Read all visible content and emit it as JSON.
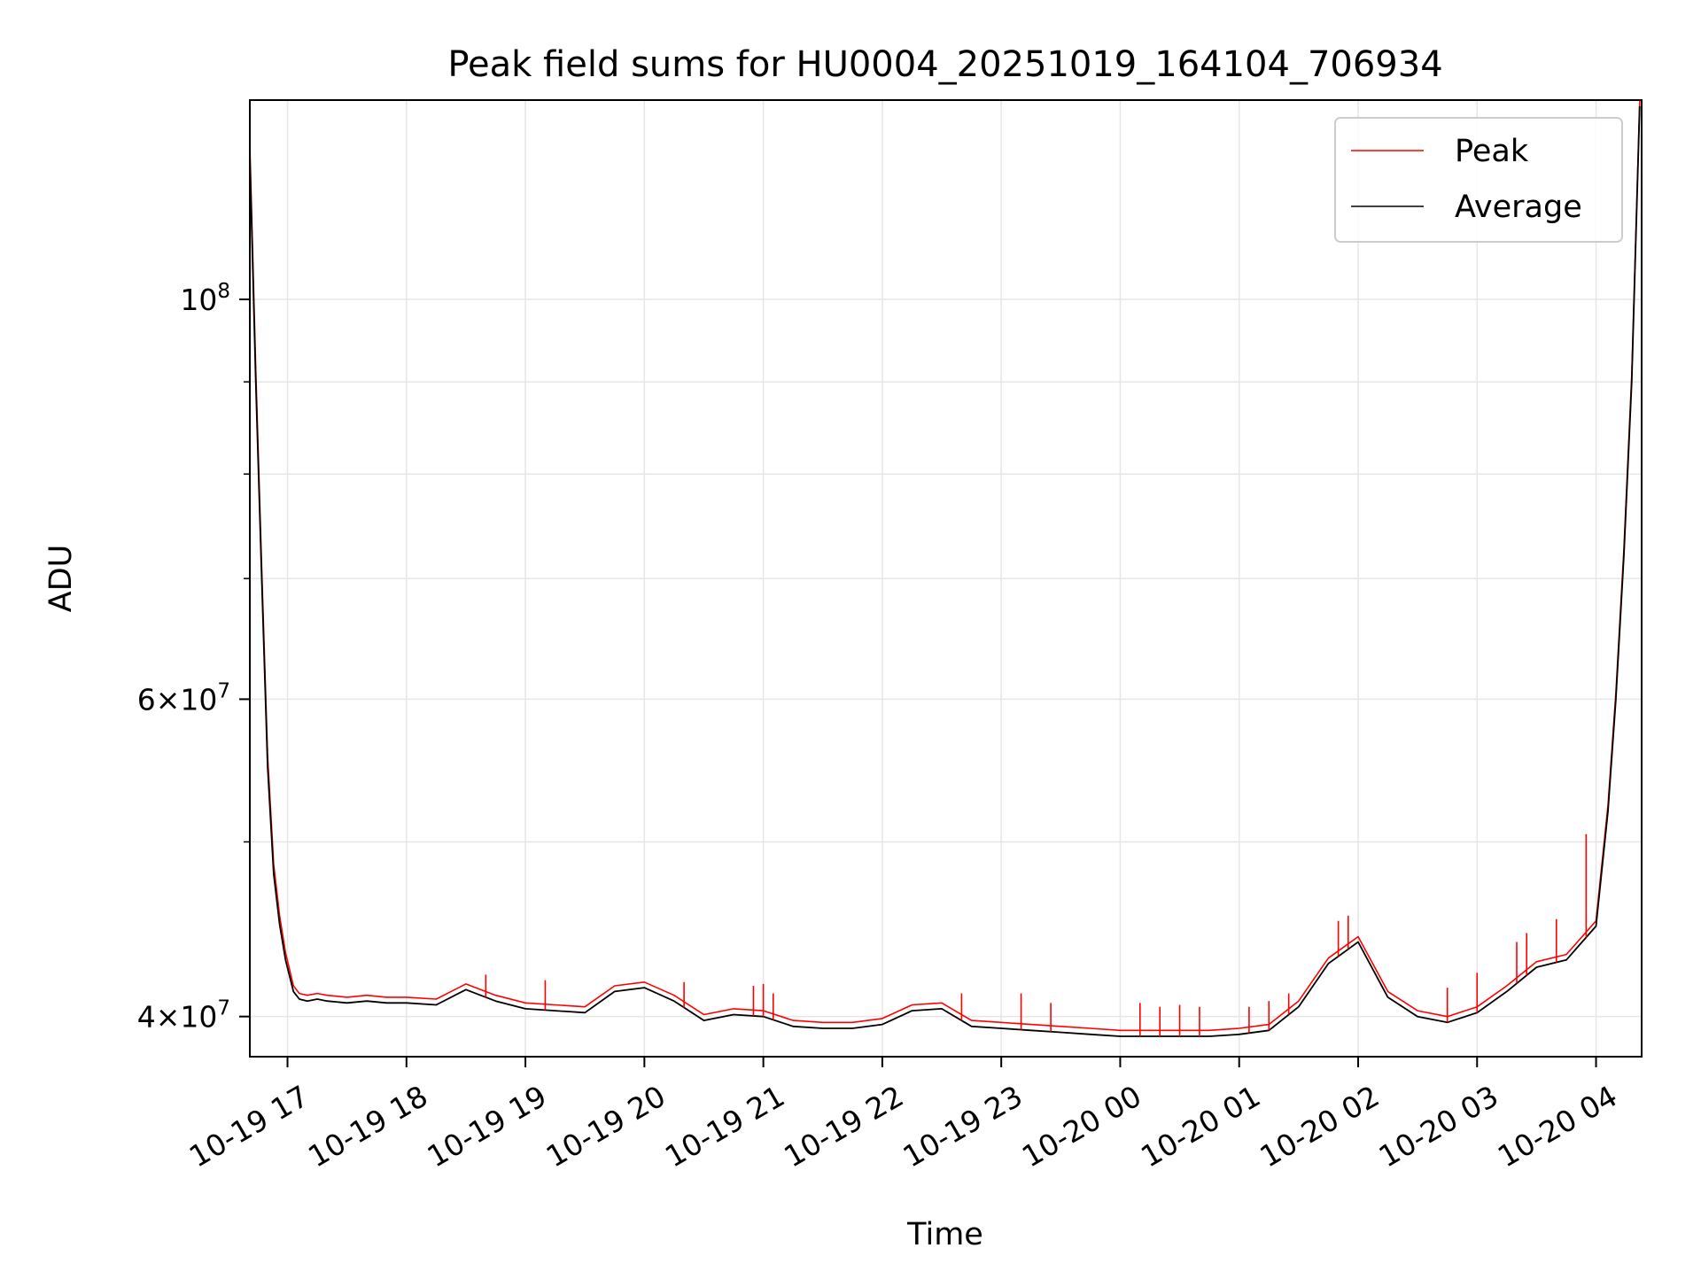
{
  "chart_data": {
    "type": "line",
    "title": "Peak field sums for HU0004_20251019_164104_706934",
    "xlabel": "Time",
    "ylabel": "ADU",
    "x_type": "datetime",
    "xlim": [
      "2025-10-19 16:41",
      "2025-10-20 04:23"
    ],
    "y_scale": "log",
    "ylim": [
      38000000,
      129000000
    ],
    "x_ticks": [
      {
        "value": "2025-10-19 17:00",
        "label": "10-19 17"
      },
      {
        "value": "2025-10-19 18:00",
        "label": "10-19 18"
      },
      {
        "value": "2025-10-19 19:00",
        "label": "10-19 19"
      },
      {
        "value": "2025-10-19 20:00",
        "label": "10-19 20"
      },
      {
        "value": "2025-10-19 21:00",
        "label": "10-19 21"
      },
      {
        "value": "2025-10-19 22:00",
        "label": "10-19 22"
      },
      {
        "value": "2025-10-19 23:00",
        "label": "10-19 23"
      },
      {
        "value": "2025-10-20 00:00",
        "label": "10-20 00"
      },
      {
        "value": "2025-10-20 01:00",
        "label": "10-20 01"
      },
      {
        "value": "2025-10-20 02:00",
        "label": "10-20 02"
      },
      {
        "value": "2025-10-20 03:00",
        "label": "10-20 03"
      },
      {
        "value": "2025-10-20 04:00",
        "label": "10-20 04"
      }
    ],
    "y_major_ticks": [
      {
        "value": 40000000,
        "base": "4×10",
        "exp": "7"
      },
      {
        "value": 60000000,
        "base": "6×10",
        "exp": "7"
      },
      {
        "value": 100000000,
        "base": "10",
        "exp": "8"
      }
    ],
    "y_minor_ticks": [
      50000000,
      70000000,
      80000000,
      90000000
    ],
    "grid": true,
    "legend": {
      "position": "top-right",
      "entries": [
        {
          "label": "Peak",
          "color": "#ff0000"
        },
        {
          "label": "Average",
          "color": "#000000"
        }
      ]
    },
    "series": [
      {
        "name": "Average",
        "color": "#000000",
        "x": [
          "2025-10-19 16:41",
          "2025-10-19 16:44",
          "2025-10-19 16:47",
          "2025-10-19 16:50",
          "2025-10-19 16:53",
          "2025-10-19 16:56",
          "2025-10-19 16:59",
          "2025-10-19 17:03",
          "2025-10-19 17:06",
          "2025-10-19 17:10",
          "2025-10-19 17:15",
          "2025-10-19 17:20",
          "2025-10-19 17:30",
          "2025-10-19 17:40",
          "2025-10-19 17:50",
          "2025-10-19 18:00",
          "2025-10-19 18:15",
          "2025-10-19 18:30",
          "2025-10-19 18:45",
          "2025-10-19 19:00",
          "2025-10-19 19:15",
          "2025-10-19 19:30",
          "2025-10-19 19:45",
          "2025-10-19 20:00",
          "2025-10-19 20:15",
          "2025-10-19 20:30",
          "2025-10-19 20:45",
          "2025-10-19 21:00",
          "2025-10-19 21:15",
          "2025-10-19 21:30",
          "2025-10-19 21:45",
          "2025-10-19 22:00",
          "2025-10-19 22:15",
          "2025-10-19 22:30",
          "2025-10-19 22:45",
          "2025-10-19 23:00",
          "2025-10-19 23:15",
          "2025-10-19 23:30",
          "2025-10-19 23:45",
          "2025-10-20 00:00",
          "2025-10-20 00:15",
          "2025-10-20 00:30",
          "2025-10-20 00:45",
          "2025-10-20 01:00",
          "2025-10-20 01:15",
          "2025-10-20 01:30",
          "2025-10-20 01:45",
          "2025-10-20 02:00",
          "2025-10-20 02:15",
          "2025-10-20 02:30",
          "2025-10-20 02:45",
          "2025-10-20 03:00",
          "2025-10-20 03:15",
          "2025-10-20 03:30",
          "2025-10-20 03:45",
          "2025-10-20 04:00",
          "2025-10-20 04:06",
          "2025-10-20 04:10",
          "2025-10-20 04:14",
          "2025-10-20 04:18",
          "2025-10-20 04:22"
        ],
        "values": [
          120000000,
          90000000,
          70000000,
          55000000,
          48000000,
          45000000,
          43000000,
          41300000,
          40900000,
          40800000,
          40900000,
          40800000,
          40700000,
          40800000,
          40700000,
          40700000,
          40600000,
          41400000,
          40800000,
          40400000,
          40300000,
          40200000,
          41300000,
          41500000,
          40800000,
          39800000,
          40100000,
          40000000,
          39500000,
          39400000,
          39400000,
          39600000,
          40300000,
          40400000,
          39500000,
          39400000,
          39300000,
          39200000,
          39100000,
          39000000,
          39000000,
          39000000,
          39000000,
          39100000,
          39300000,
          40500000,
          42800000,
          44000000,
          41000000,
          40000000,
          39700000,
          40200000,
          41300000,
          42600000,
          43000000,
          44900000,
          52000000,
          60000000,
          72000000,
          90000000,
          128000000
        ]
      },
      {
        "name": "Peak",
        "color": "#ff0000",
        "x": [
          "2025-10-19 16:41",
          "2025-10-19 16:44",
          "2025-10-19 16:47",
          "2025-10-19 16:50",
          "2025-10-19 16:53",
          "2025-10-19 16:56",
          "2025-10-19 16:59",
          "2025-10-19 17:03",
          "2025-10-19 17:06",
          "2025-10-19 17:10",
          "2025-10-19 17:15",
          "2025-10-19 17:20",
          "2025-10-19 17:30",
          "2025-10-19 17:40",
          "2025-10-19 17:50",
          "2025-10-19 18:00",
          "2025-10-19 18:15",
          "2025-10-19 18:30",
          "2025-10-19 18:45",
          "2025-10-19 19:00",
          "2025-10-19 19:15",
          "2025-10-19 19:30",
          "2025-10-19 19:45",
          "2025-10-19 20:00",
          "2025-10-19 20:15",
          "2025-10-19 20:30",
          "2025-10-19 20:45",
          "2025-10-19 21:00",
          "2025-10-19 21:15",
          "2025-10-19 21:30",
          "2025-10-19 21:45",
          "2025-10-19 22:00",
          "2025-10-19 22:15",
          "2025-10-19 22:30",
          "2025-10-19 22:45",
          "2025-10-19 23:00",
          "2025-10-19 23:15",
          "2025-10-19 23:30",
          "2025-10-19 23:45",
          "2025-10-20 00:00",
          "2025-10-20 00:15",
          "2025-10-20 00:30",
          "2025-10-20 00:45",
          "2025-10-20 01:00",
          "2025-10-20 01:15",
          "2025-10-20 01:30",
          "2025-10-20 01:45",
          "2025-10-20 02:00",
          "2025-10-20 02:15",
          "2025-10-20 02:30",
          "2025-10-20 02:45",
          "2025-10-20 03:00",
          "2025-10-20 03:15",
          "2025-10-20 03:30",
          "2025-10-20 03:45",
          "2025-10-20 04:00",
          "2025-10-20 04:06",
          "2025-10-20 04:10",
          "2025-10-20 04:14",
          "2025-10-20 04:18",
          "2025-10-20 04:22"
        ],
        "values": [
          122000000,
          91500000,
          71000000,
          55800000,
          48600000,
          45500000,
          43400000,
          41600000,
          41200000,
          41100000,
          41200000,
          41100000,
          41000000,
          41100000,
          41000000,
          41000000,
          40900000,
          41700000,
          41100000,
          40700000,
          40600000,
          40500000,
          41600000,
          41800000,
          41100000,
          40100000,
          40400000,
          40300000,
          39800000,
          39700000,
          39700000,
          39900000,
          40600000,
          40700000,
          39800000,
          39700000,
          39600000,
          39500000,
          39400000,
          39300000,
          39300000,
          39300000,
          39300000,
          39400000,
          39600000,
          40800000,
          43100000,
          44300000,
          41300000,
          40300000,
          40000000,
          40500000,
          41600000,
          42900000,
          43300000,
          45200000,
          52400000,
          60500000,
          72600000,
          90800000,
          129000000
        ]
      }
    ],
    "peak_spikes": [
      {
        "x": "2025-10-19 18:40",
        "value": 42200000
      },
      {
        "x": "2025-10-19 19:10",
        "value": 41900000
      },
      {
        "x": "2025-10-19 20:20",
        "value": 41800000
      },
      {
        "x": "2025-10-19 20:55",
        "value": 41600000
      },
      {
        "x": "2025-10-19 21:00",
        "value": 41700000
      },
      {
        "x": "2025-10-19 21:05",
        "value": 41200000
      },
      {
        "x": "2025-10-19 22:40",
        "value": 41200000
      },
      {
        "x": "2025-10-19 23:10",
        "value": 41200000
      },
      {
        "x": "2025-10-19 23:25",
        "value": 40700000
      },
      {
        "x": "2025-10-20 00:10",
        "value": 40700000
      },
      {
        "x": "2025-10-20 00:20",
        "value": 40500000
      },
      {
        "x": "2025-10-20 00:30",
        "value": 40600000
      },
      {
        "x": "2025-10-20 00:40",
        "value": 40500000
      },
      {
        "x": "2025-10-20 01:05",
        "value": 40500000
      },
      {
        "x": "2025-10-20 01:15",
        "value": 40800000
      },
      {
        "x": "2025-10-20 01:25",
        "value": 41200000
      },
      {
        "x": "2025-10-20 01:50",
        "value": 45200000
      },
      {
        "x": "2025-10-20 01:55",
        "value": 45500000
      },
      {
        "x": "2025-10-20 02:45",
        "value": 41500000
      },
      {
        "x": "2025-10-20 03:00",
        "value": 42300000
      },
      {
        "x": "2025-10-20 03:20",
        "value": 44000000
      },
      {
        "x": "2025-10-20 03:25",
        "value": 44500000
      },
      {
        "x": "2025-10-20 03:40",
        "value": 45300000
      },
      {
        "x": "2025-10-20 03:55",
        "value": 50500000
      }
    ]
  }
}
